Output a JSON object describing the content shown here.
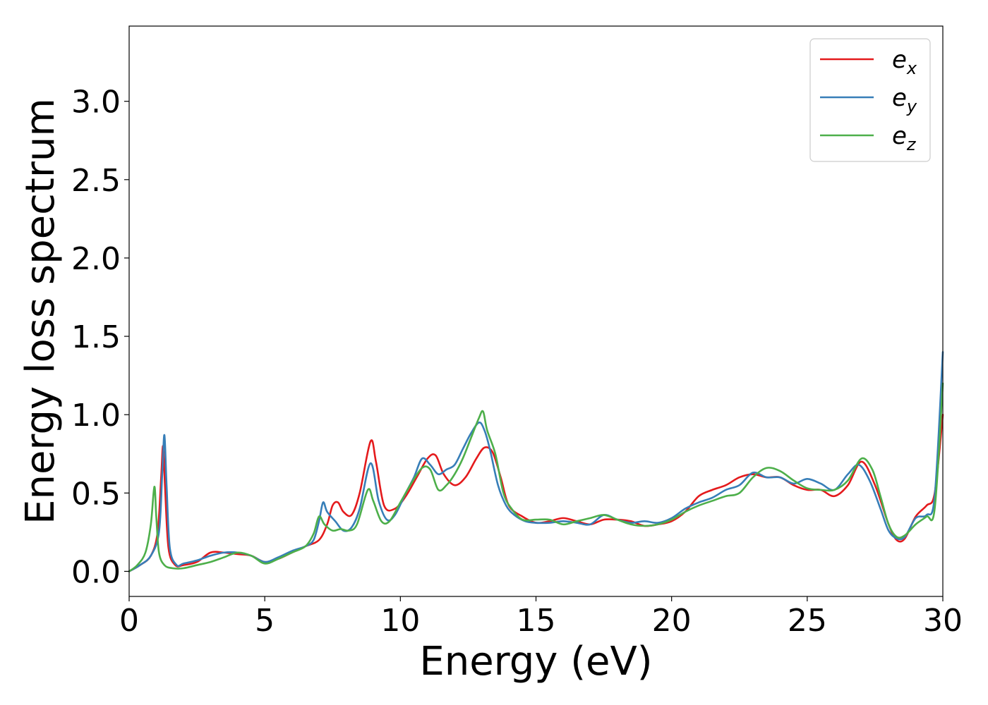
{
  "chart_data": {
    "type": "line",
    "title": "",
    "xlabel": "Energy (eV)",
    "ylabel": "Energy loss spectrum",
    "xlim": [
      0,
      30
    ],
    "ylim": [
      -0.16,
      3.48
    ],
    "xticks": [
      0,
      5,
      10,
      15,
      20,
      25,
      30
    ],
    "xtick_labels": [
      "0",
      "5",
      "10",
      "15",
      "20",
      "25",
      "30"
    ],
    "yticks": [
      0.0,
      0.5,
      1.0,
      1.5,
      2.0,
      2.5,
      3.0
    ],
    "ytick_labels": [
      "0.0",
      "0.5",
      "1.0",
      "1.5",
      "2.0",
      "2.5",
      "3.0"
    ],
    "grid": false,
    "legend_position": "top-right",
    "series": [
      {
        "name": "e_x",
        "label_base": "e",
        "label_sub": "x",
        "color": "#e41a1c",
        "x": [
          0,
          0.4,
          0.8,
          1.05,
          1.18,
          1.25,
          1.32,
          1.45,
          1.7,
          2.0,
          2.5,
          3.0,
          3.5,
          4.0,
          4.5,
          5.0,
          5.5,
          6.0,
          6.5,
          7.0,
          7.3,
          7.5,
          7.7,
          7.9,
          8.2,
          8.5,
          8.9,
          9.1,
          9.4,
          9.8,
          10.2,
          10.6,
          11.0,
          11.3,
          11.6,
          12.0,
          12.4,
          12.8,
          13.1,
          13.4,
          13.7,
          14.0,
          14.5,
          15.0,
          15.5,
          16.0,
          16.5,
          17.0,
          17.5,
          18.0,
          18.5,
          19.0,
          19.5,
          20.0,
          20.5,
          21.0,
          21.5,
          22.0,
          22.5,
          23.0,
          23.5,
          24.0,
          24.5,
          25.0,
          25.5,
          26.0,
          26.5,
          27.0,
          27.5,
          28.0,
          28.3,
          28.6,
          29.0,
          29.4,
          29.7,
          30.0
        ],
        "y": [
          0.0,
          0.04,
          0.1,
          0.25,
          0.6,
          0.8,
          0.55,
          0.15,
          0.04,
          0.04,
          0.06,
          0.12,
          0.12,
          0.11,
          0.1,
          0.06,
          0.08,
          0.12,
          0.16,
          0.2,
          0.3,
          0.42,
          0.44,
          0.38,
          0.36,
          0.5,
          0.83,
          0.7,
          0.42,
          0.4,
          0.48,
          0.6,
          0.72,
          0.74,
          0.62,
          0.55,
          0.6,
          0.72,
          0.79,
          0.76,
          0.6,
          0.42,
          0.35,
          0.31,
          0.32,
          0.34,
          0.32,
          0.3,
          0.33,
          0.33,
          0.32,
          0.29,
          0.3,
          0.32,
          0.38,
          0.48,
          0.52,
          0.55,
          0.6,
          0.62,
          0.6,
          0.6,
          0.55,
          0.52,
          0.52,
          0.48,
          0.55,
          0.7,
          0.55,
          0.3,
          0.2,
          0.21,
          0.35,
          0.42,
          0.5,
          1.0
        ]
      },
      {
        "name": "e_y",
        "label_base": "e",
        "label_sub": "y",
        "color": "#377eb8",
        "x": [
          0,
          0.4,
          0.8,
          1.1,
          1.22,
          1.3,
          1.38,
          1.5,
          1.75,
          2.0,
          2.5,
          3.0,
          3.5,
          4.0,
          4.5,
          5.0,
          5.5,
          6.0,
          6.5,
          6.8,
          7.0,
          7.15,
          7.3,
          7.6,
          7.9,
          8.2,
          8.5,
          8.9,
          9.2,
          9.5,
          9.8,
          10.2,
          10.5,
          10.8,
          11.1,
          11.4,
          11.7,
          12.0,
          12.3,
          12.6,
          12.9,
          13.1,
          13.3,
          13.6,
          13.9,
          14.2,
          14.6,
          15.0,
          15.5,
          16.0,
          16.5,
          17.0,
          17.5,
          18.0,
          18.5,
          19.0,
          19.5,
          20.0,
          20.5,
          21.0,
          21.5,
          22.0,
          22.5,
          23.0,
          23.5,
          24.0,
          24.5,
          25.0,
          25.5,
          26.0,
          26.5,
          26.9,
          27.3,
          27.7,
          28.0,
          28.3,
          28.6,
          29.0,
          29.4,
          29.7,
          30.0
        ],
        "y": [
          0.0,
          0.04,
          0.1,
          0.25,
          0.62,
          0.87,
          0.55,
          0.15,
          0.04,
          0.05,
          0.07,
          0.1,
          0.12,
          0.12,
          0.1,
          0.06,
          0.09,
          0.13,
          0.16,
          0.2,
          0.32,
          0.44,
          0.38,
          0.32,
          0.26,
          0.28,
          0.4,
          0.69,
          0.45,
          0.33,
          0.36,
          0.5,
          0.6,
          0.72,
          0.68,
          0.62,
          0.65,
          0.68,
          0.78,
          0.88,
          0.95,
          0.9,
          0.78,
          0.55,
          0.42,
          0.36,
          0.32,
          0.31,
          0.31,
          0.32,
          0.31,
          0.3,
          0.36,
          0.33,
          0.31,
          0.32,
          0.31,
          0.34,
          0.4,
          0.44,
          0.47,
          0.52,
          0.55,
          0.63,
          0.6,
          0.6,
          0.56,
          0.59,
          0.56,
          0.52,
          0.62,
          0.68,
          0.58,
          0.4,
          0.26,
          0.21,
          0.22,
          0.34,
          0.36,
          0.48,
          1.4
        ]
      },
      {
        "name": "e_z",
        "label_base": "e",
        "label_sub": "z",
        "color": "#4daf4a",
        "x": [
          0,
          0.3,
          0.6,
          0.8,
          0.93,
          1.0,
          1.1,
          1.3,
          1.6,
          2.0,
          2.5,
          3.0,
          3.5,
          4.0,
          4.5,
          5.0,
          5.5,
          6.0,
          6.5,
          6.8,
          7.0,
          7.2,
          7.5,
          7.8,
          8.1,
          8.4,
          8.8,
          9.0,
          9.3,
          9.6,
          10.0,
          10.4,
          10.8,
          11.1,
          11.4,
          11.7,
          12.0,
          12.3,
          12.6,
          12.9,
          13.05,
          13.2,
          13.5,
          13.8,
          14.1,
          14.5,
          15.0,
          15.5,
          16.0,
          16.5,
          17.0,
          17.5,
          18.0,
          18.5,
          19.0,
          19.5,
          20.0,
          20.5,
          21.0,
          21.5,
          22.0,
          22.5,
          23.0,
          23.5,
          24.0,
          24.5,
          25.0,
          25.5,
          26.0,
          26.5,
          27.0,
          27.4,
          27.7,
          28.0,
          28.3,
          28.6,
          29.0,
          29.4,
          29.7,
          30.0
        ],
        "y": [
          0.0,
          0.04,
          0.12,
          0.3,
          0.54,
          0.35,
          0.12,
          0.04,
          0.02,
          0.02,
          0.04,
          0.06,
          0.09,
          0.12,
          0.1,
          0.05,
          0.08,
          0.12,
          0.16,
          0.24,
          0.35,
          0.3,
          0.26,
          0.27,
          0.26,
          0.3,
          0.52,
          0.45,
          0.32,
          0.32,
          0.44,
          0.56,
          0.66,
          0.65,
          0.52,
          0.55,
          0.62,
          0.72,
          0.85,
          0.98,
          1.02,
          0.9,
          0.75,
          0.5,
          0.4,
          0.33,
          0.33,
          0.33,
          0.3,
          0.32,
          0.34,
          0.36,
          0.33,
          0.3,
          0.29,
          0.3,
          0.33,
          0.38,
          0.42,
          0.45,
          0.48,
          0.5,
          0.6,
          0.66,
          0.64,
          0.58,
          0.53,
          0.52,
          0.52,
          0.58,
          0.72,
          0.65,
          0.48,
          0.3,
          0.22,
          0.23,
          0.3,
          0.35,
          0.4,
          1.2
        ]
      }
    ]
  }
}
